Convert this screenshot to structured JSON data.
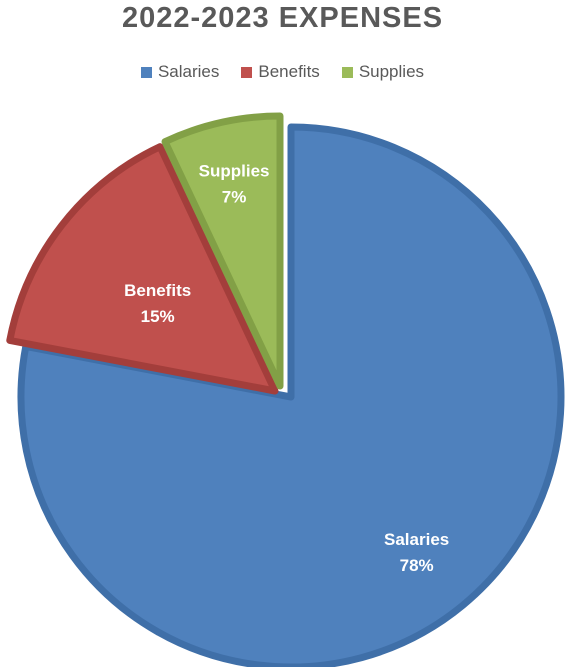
{
  "chart_data": {
    "type": "pie",
    "title": "2022-2023 EXPENSES",
    "legend_position": "top",
    "slices": [
      {
        "name": "Salaries",
        "value": 78,
        "label": "78%",
        "color": "#4F81BD",
        "edge": "#3F6FA8"
      },
      {
        "name": "Benefits",
        "value": 15,
        "label": "15%",
        "color": "#C0504D",
        "edge": "#A33E3B"
      },
      {
        "name": "Supplies",
        "value": 7,
        "label": "7%",
        "color": "#9BBB59",
        "edge": "#82A046"
      }
    ]
  }
}
